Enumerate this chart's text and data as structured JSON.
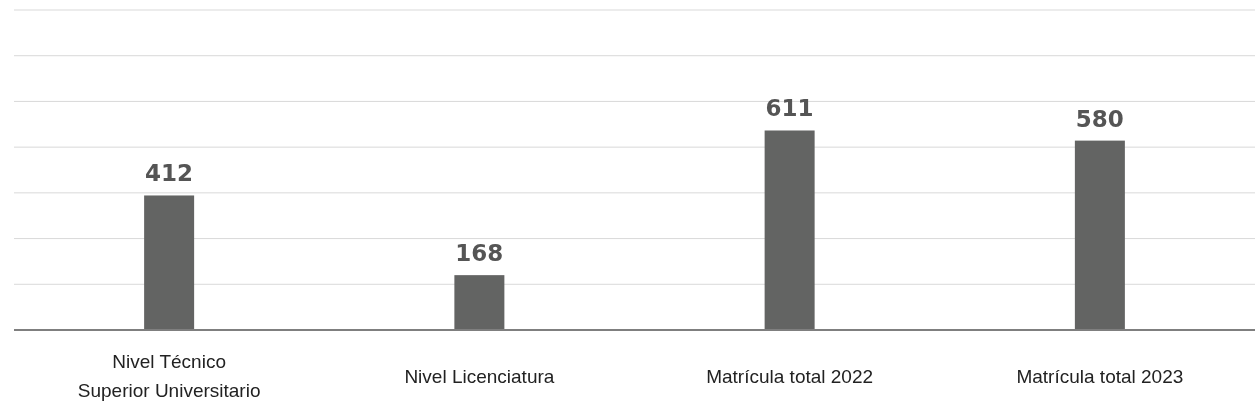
{
  "chart_data": {
    "type": "bar",
    "categories": [
      "Nivel Técnico\nSuperior Universitario",
      "Nivel Licenciatura",
      "Matrícula total 2022",
      "Matrícula total 2023"
    ],
    "values": [
      412,
      168,
      611,
      580
    ],
    "color": "#636463",
    "ylim": [
      0,
      980
    ],
    "yticks": [
      {
        "value": 0,
        "label": null
      },
      {
        "value": 140,
        "label": null
      },
      {
        "value": 280,
        "label": null
      },
      {
        "value": 420,
        "label": null
      },
      {
        "value": 560,
        "label": null
      },
      {
        "value": 700,
        "label": null
      },
      {
        "value": 840,
        "label": null
      },
      {
        "value": 980,
        "label": null
      }
    ],
    "tick_labels": "x",
    "grid": "y",
    "data_labels": true
  }
}
